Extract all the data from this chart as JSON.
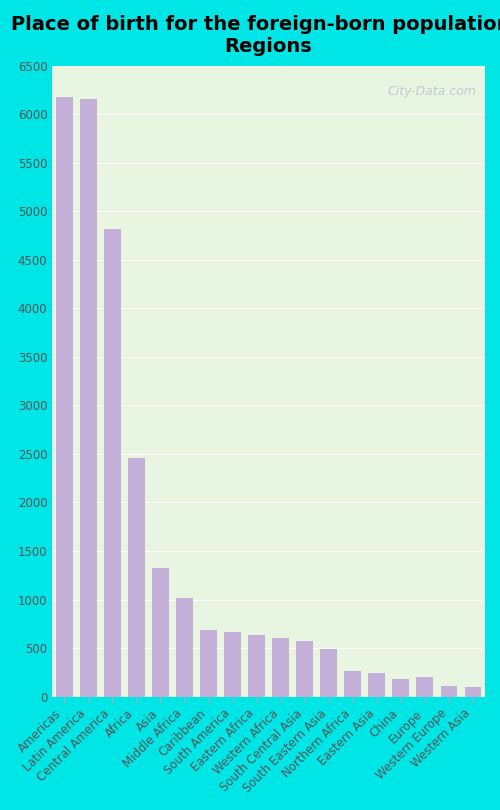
{
  "title": "Place of birth for the foreign-born population -\nRegions",
  "categories": [
    "Americas",
    "Latin America",
    "Central America",
    "Africa",
    "Asia",
    "Middle Africa",
    "Caribbean",
    "South America",
    "Eastern Africa",
    "Western Africa",
    "South Central Asia",
    "South Eastern Asia",
    "Northern Africa",
    "Eastern Asia",
    "China",
    "Europe",
    "Western Europe",
    "Western Asia"
  ],
  "values": [
    6180,
    6160,
    4820,
    2460,
    1320,
    1020,
    690,
    670,
    630,
    600,
    570,
    490,
    265,
    245,
    185,
    200,
    105,
    95
  ],
  "bar_color": "#c4afd8",
  "background_color": "#e8f5e0",
  "outer_background": "#00e5e5",
  "ylim": [
    0,
    6500
  ],
  "yticks": [
    0,
    500,
    1000,
    1500,
    2000,
    2500,
    3000,
    3500,
    4000,
    4500,
    5000,
    5500,
    6000,
    6500
  ],
  "title_fontsize": 14,
  "tick_fontsize": 8.5,
  "watermark": "City-Data.com"
}
